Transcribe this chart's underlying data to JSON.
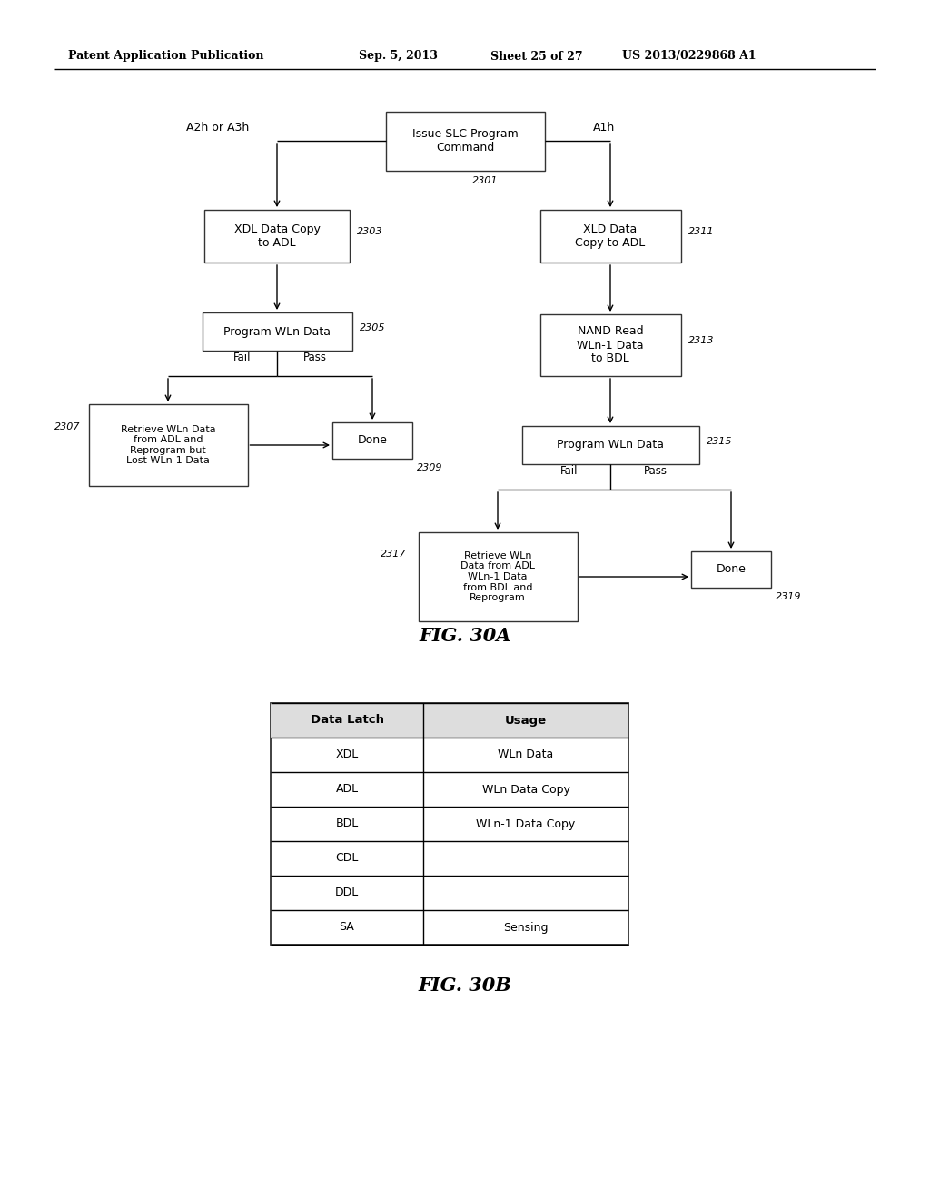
{
  "bg_color": "#ffffff",
  "header_text": "Patent Application Publication",
  "header_date": "Sep. 5, 2013",
  "header_sheet": "Sheet 25 of 27",
  "header_patent": "US 2013/0229868 A1",
  "fig30a_label": "FIG. 30A",
  "fig30b_label": "FIG. 30B",
  "table_headers": [
    "Data Latch",
    "Usage"
  ],
  "table_rows": [
    [
      "XDL",
      "WLn Data"
    ],
    [
      "ADL",
      "WLn Data Copy"
    ],
    [
      "BDL",
      "WLn-1 Data Copy"
    ],
    [
      "CDL",
      ""
    ],
    [
      "DDL",
      ""
    ],
    [
      "SA",
      "Sensing"
    ]
  ]
}
